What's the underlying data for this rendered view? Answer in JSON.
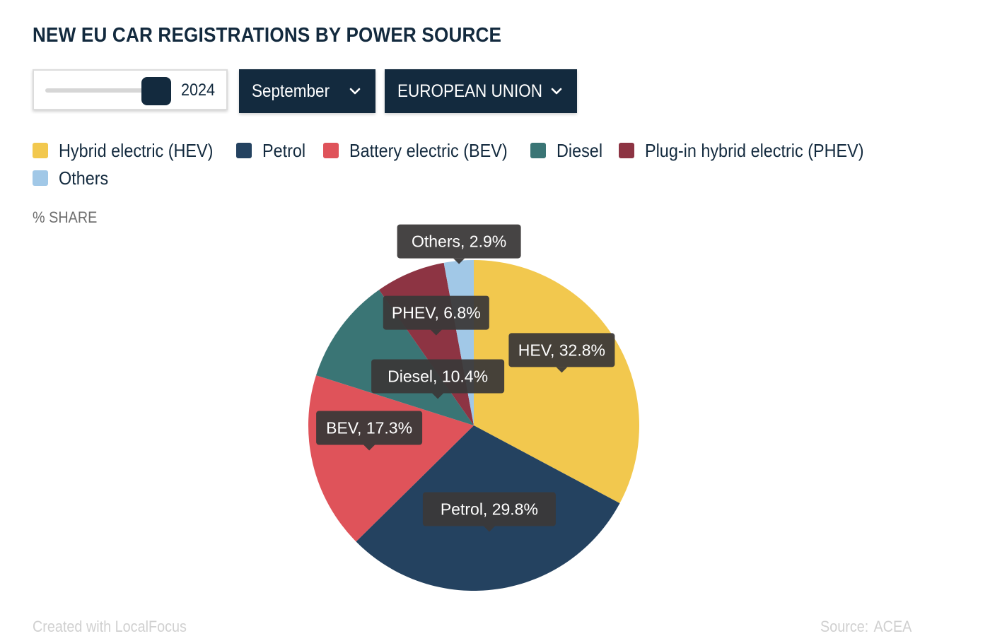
{
  "title": "NEW EU CAR REGISTRATIONS BY POWER SOURCE",
  "controls": {
    "year": "2024",
    "month": "September",
    "region": "EUROPEAN UNION"
  },
  "legend": [
    {
      "label": "Hybrid electric (HEV)",
      "color": "#f2c84e"
    },
    {
      "label": "Petrol",
      "color": "#244260"
    },
    {
      "label": "Battery electric (BEV)",
      "color": "#df535a"
    },
    {
      "label": "Diesel",
      "color": "#3a7575"
    },
    {
      "label": "Plug-in hybrid electric (PHEV)",
      "color": "#8d3443"
    },
    {
      "label": "Others",
      "color": "#a1c8e7"
    }
  ],
  "unit_label": "% SHARE",
  "chart_data": {
    "type": "pie",
    "title": "NEW EU CAR REGISTRATIONS BY POWER SOURCE",
    "unit": "% SHARE",
    "categories": [
      "HEV",
      "Petrol",
      "BEV",
      "Diesel",
      "PHEV",
      "Others"
    ],
    "values": [
      32.8,
      29.8,
      17.3,
      10.4,
      6.8,
      2.9
    ],
    "colors": [
      "#f2c84e",
      "#244260",
      "#df535a",
      "#3a7575",
      "#8d3443",
      "#a1c8e7"
    ],
    "data_labels": [
      "HEV, 32.8%",
      "Petrol, 29.8%",
      "BEV, 17.3%",
      "Diesel, 10.4%",
      "PHEV, 6.8%",
      "Others, 2.9%"
    ],
    "start": "12 o'clock",
    "direction": "clockwise"
  },
  "footer": {
    "credit": "Created with LocalFocus",
    "source_label": "Source:",
    "source": "ACEA"
  }
}
